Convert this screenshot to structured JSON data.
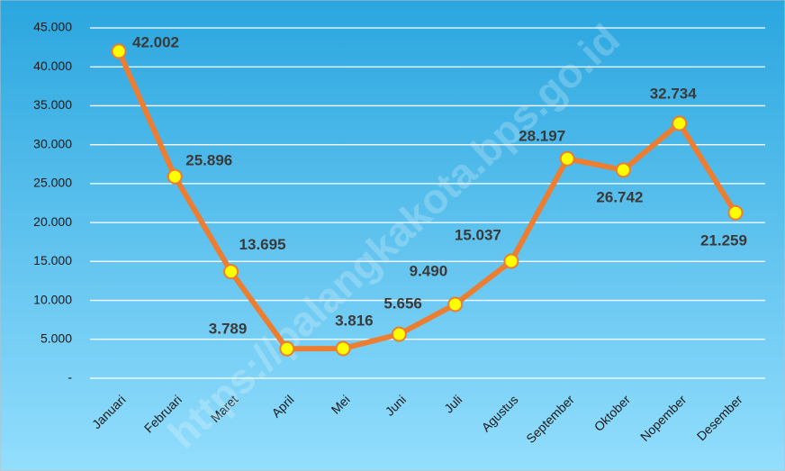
{
  "chart_data": {
    "type": "line",
    "watermark": "https://palangkakota.bps.go.id",
    "categories": [
      "Januari",
      "Februari",
      "Maret",
      "April",
      "Mei",
      "Juni",
      "Juli",
      "Agustus",
      "September",
      "Oktober",
      "Nopember",
      "Desember"
    ],
    "series": [
      {
        "color": "#ed7d31",
        "values": [
          42002,
          25896,
          13695,
          3789,
          3816,
          5656,
          9490,
          15037,
          28197,
          26742,
          32734,
          21259
        ],
        "value_labels": [
          "42.002",
          "25.896",
          "13.695",
          "3.789",
          "3.816",
          "5.656",
          "9.490",
          "15.037",
          "28.197",
          "26.742",
          "32.734",
          "21.259"
        ]
      }
    ],
    "marker_color": "#ffff00",
    "ylim": [
      0,
      45000
    ],
    "yticks": [
      {
        "value": 0,
        "label": "-"
      },
      {
        "value": 5000,
        "label": "5.000"
      },
      {
        "value": 10000,
        "label": "10.000"
      },
      {
        "value": 15000,
        "label": "15.000"
      },
      {
        "value": 20000,
        "label": "20.000"
      },
      {
        "value": 25000,
        "label": "25.000"
      },
      {
        "value": 30000,
        "label": "30.000"
      },
      {
        "value": 35000,
        "label": "35.000"
      },
      {
        "value": 40000,
        "label": "40.000"
      },
      {
        "value": 45000,
        "label": "45.000"
      }
    ],
    "grid": true
  }
}
